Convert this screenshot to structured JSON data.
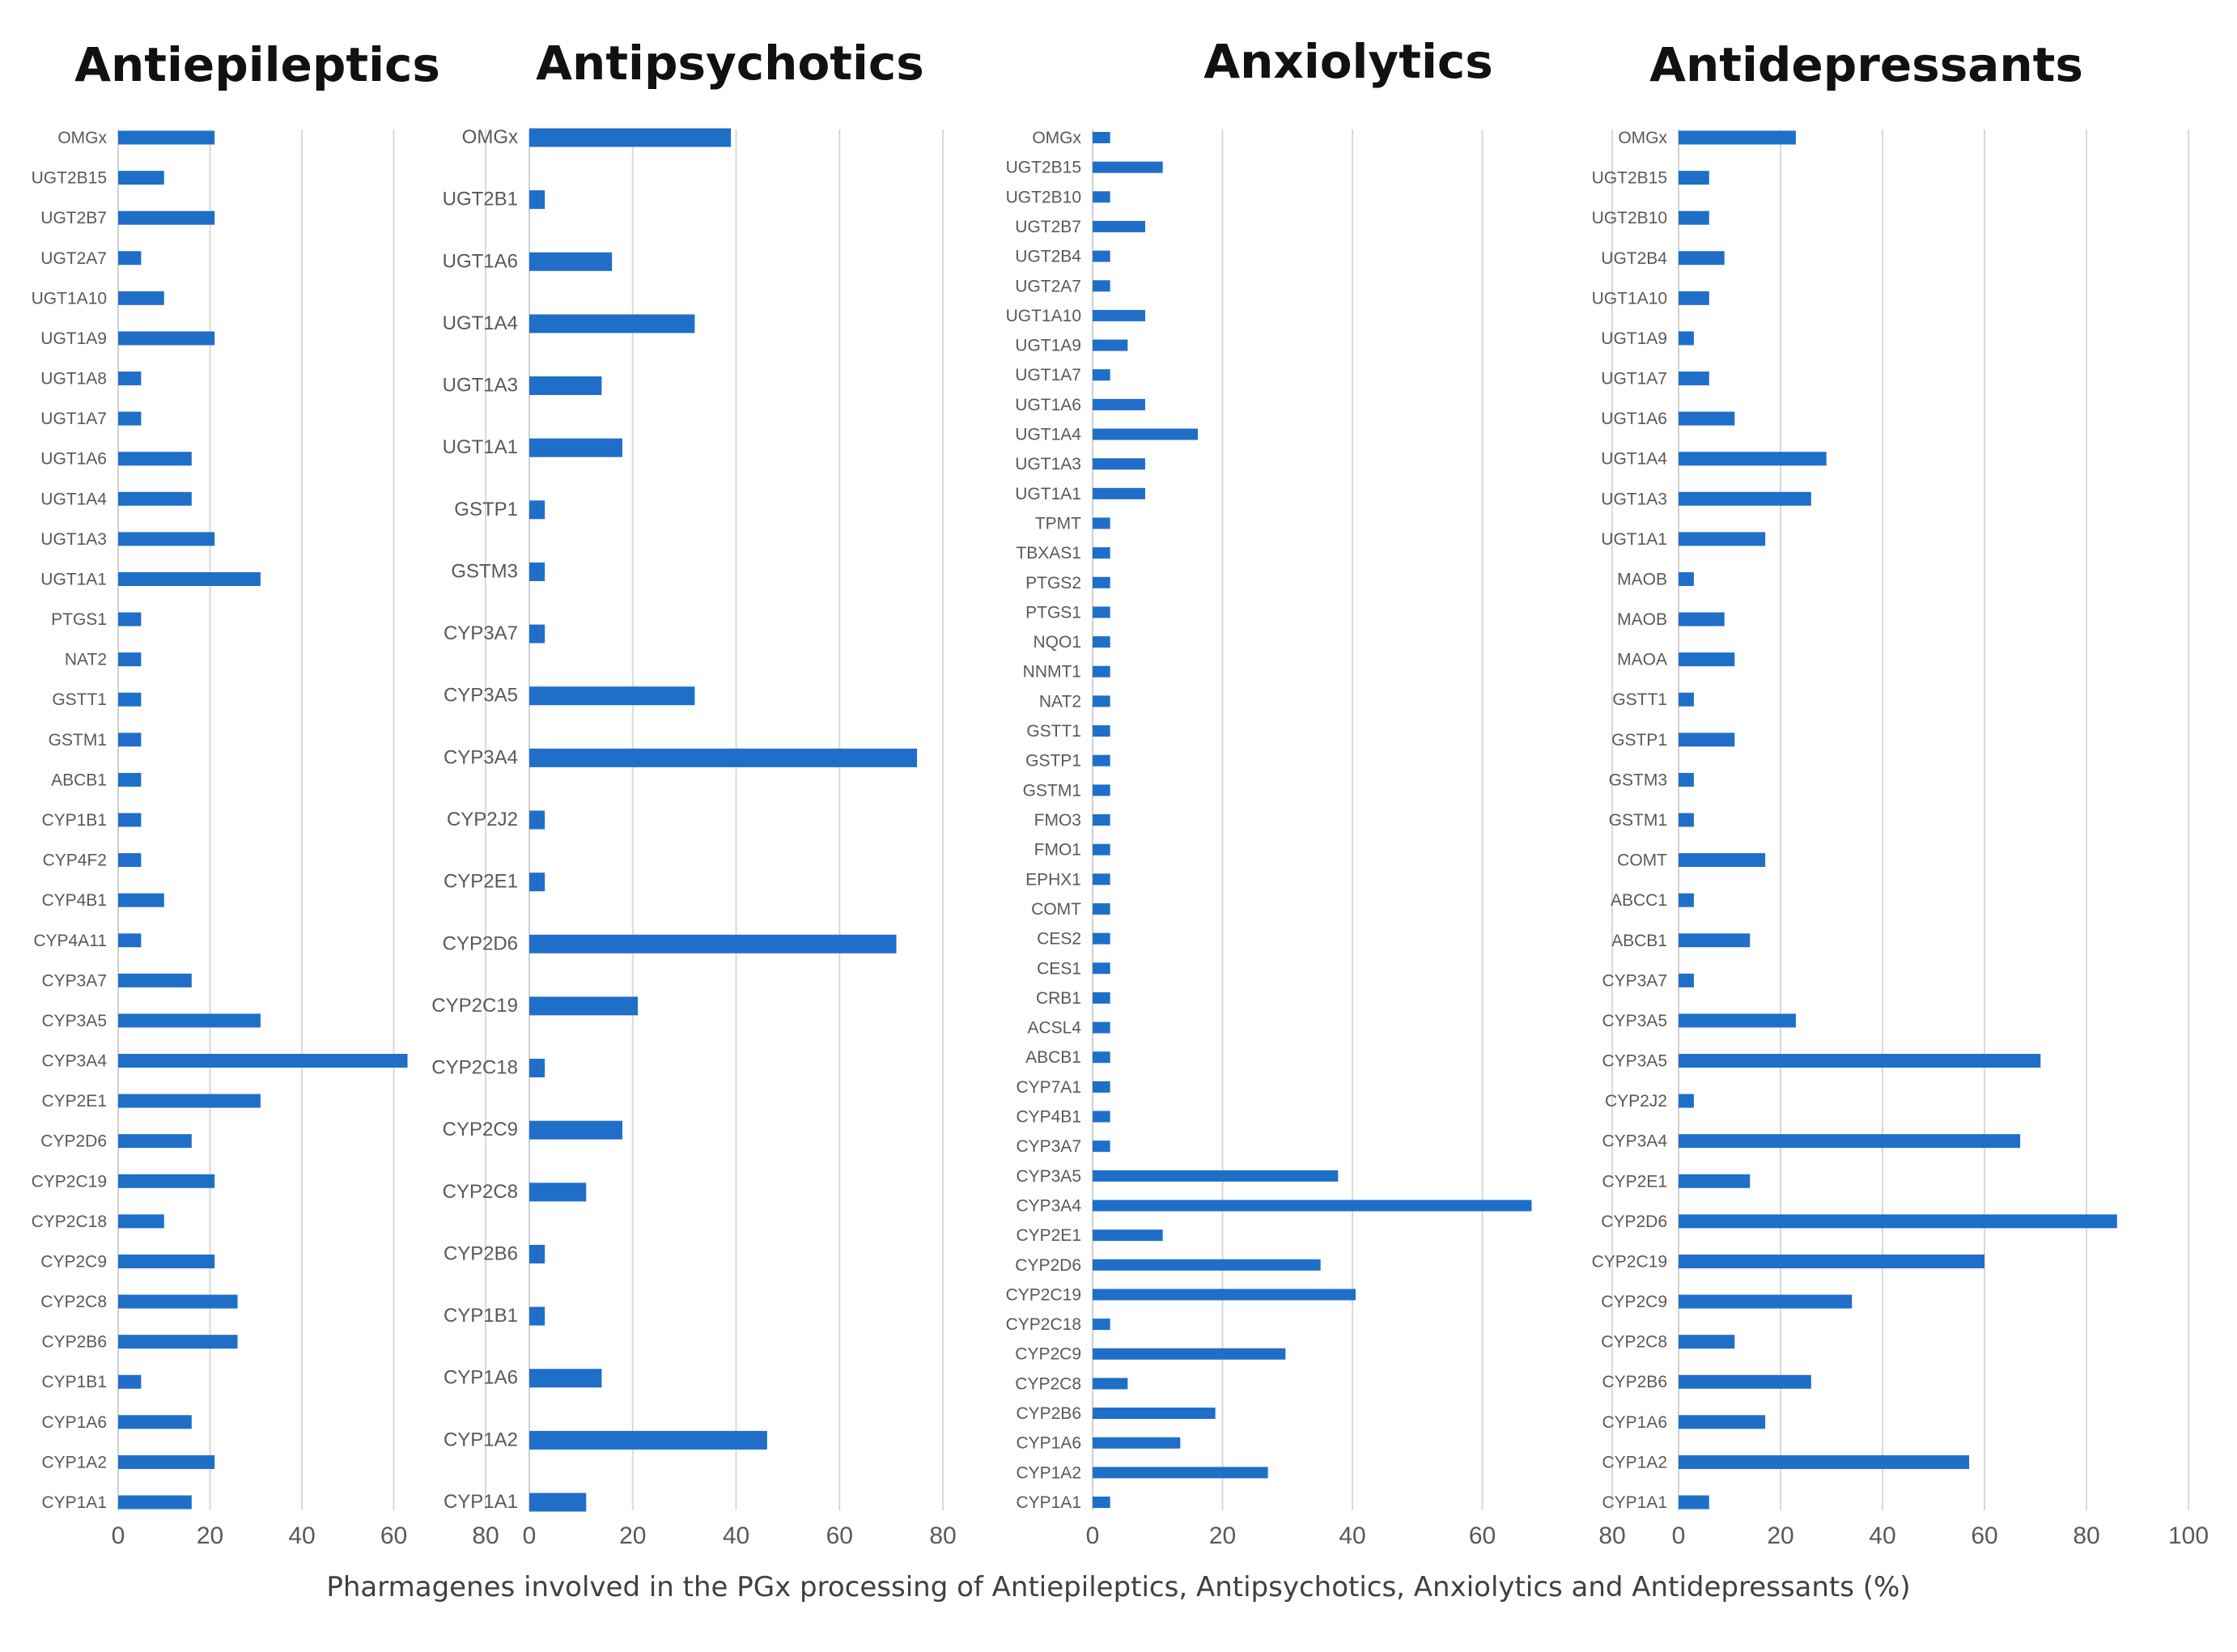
{
  "chart_data": [
    {
      "type": "bar",
      "orientation": "horizontal",
      "title": "Antiepileptics",
      "xlim": [
        0,
        80
      ],
      "xticks": [
        0,
        20,
        40,
        60,
        80
      ],
      "categories": [
        "OMGx",
        "UGT2B15",
        "UGT2B7",
        "UGT2A7",
        "UGT1A10",
        "UGT1A9",
        "UGT1A8",
        "UGT1A7",
        "UGT1A6",
        "UGT1A4",
        "UGT1A3",
        "UGT1A1",
        "PTGS1",
        "NAT2",
        "GSTT1",
        "GSTM1",
        "ABCB1",
        "CYP1B1",
        "CYP4F2",
        "CYP4B1",
        "CYP4A11",
        "CYP3A7",
        "CYP3A5",
        "CYP3A4",
        "CYP2E1",
        "CYP2D6",
        "CYP2C19",
        "CYP2C18",
        "CYP2C9",
        "CYP2C8",
        "CYP2B6",
        "CYP1B1",
        "CYP1A6",
        "CYP1A2",
        "CYP1A1"
      ],
      "values": [
        21,
        10,
        21,
        5,
        10,
        21,
        5,
        5,
        16,
        16,
        21,
        31,
        5,
        5,
        5,
        5,
        5,
        5,
        5,
        10,
        5,
        16,
        31,
        63,
        31,
        16,
        21,
        10,
        21,
        26,
        26,
        5,
        16,
        21,
        16
      ]
    },
    {
      "type": "bar",
      "orientation": "horizontal",
      "title": "Antipsychotics",
      "xlim": [
        0,
        80
      ],
      "xticks": [
        0,
        20,
        40,
        60,
        80
      ],
      "categories": [
        "OMGx",
        "UGT2B1",
        "UGT1A6",
        "UGT1A4",
        "UGT1A3",
        "UGT1A1",
        "GSTP1",
        "GSTM3",
        "CYP3A7",
        "CYP3A5",
        "CYP3A4",
        "CYP2J2",
        "CYP2E1",
        "CYP2D6",
        "CYP2C19",
        "CYP2C18",
        "CYP2C9",
        "CYP2C8",
        "CYP2B6",
        "CYP1B1",
        "CYP1A6",
        "CYP1A2",
        "CYP1A1"
      ],
      "values": [
        39,
        3,
        16,
        32,
        14,
        18,
        3,
        3,
        3,
        32,
        75,
        3,
        3,
        71,
        21,
        3,
        18,
        11,
        3,
        3,
        14,
        46,
        11
      ]
    },
    {
      "type": "bar",
      "orientation": "horizontal",
      "title": "Anxiolytics",
      "xlim": [
        0,
        80
      ],
      "xticks": [
        0,
        20,
        40,
        60,
        80
      ],
      "categories": [
        "OMGx",
        "UGT2B15",
        "UGT2B10",
        "UGT2B7",
        "UGT2B4",
        "UGT2A7",
        "UGT1A10",
        "UGT1A9",
        "UGT1A7",
        "UGT1A6",
        "UGT1A4",
        "UGT1A3",
        "UGT1A1",
        "TPMT",
        "TBXAS1",
        "PTGS2",
        "PTGS1",
        "NQO1",
        "NNMT1",
        "NAT2",
        "GSTT1",
        "GSTP1",
        "GSTM1",
        "FMO3",
        "FMO1",
        "EPHX1",
        "COMT",
        "CES2",
        "CES1",
        "CRB1",
        "ACSL4",
        "ABCB1",
        "CYP7A1",
        "CYP4B1",
        "CYP3A7",
        "CYP3A5",
        "CYP3A4",
        "CYP2E1",
        "CYP2D6",
        "CYP2C19",
        "CYP2C18",
        "CYP2C9",
        "CYP2C8",
        "CYP2B6",
        "CYP1A6",
        "CYP1A2",
        "CYP1A1"
      ],
      "values": [
        2.7,
        10.8,
        2.7,
        8.1,
        2.7,
        2.7,
        8.1,
        5.4,
        2.7,
        8.1,
        16.2,
        8.1,
        8.1,
        2.7,
        2.7,
        2.7,
        2.7,
        2.7,
        2.7,
        2.7,
        2.7,
        2.7,
        2.7,
        2.7,
        2.7,
        2.7,
        2.7,
        2.7,
        2.7,
        2.7,
        2.7,
        2.7,
        2.7,
        2.7,
        2.7,
        37.8,
        67.6,
        10.8,
        35.1,
        40.5,
        2.7,
        29.7,
        5.4,
        18.9,
        13.5,
        27.0,
        2.7
      ]
    },
    {
      "type": "bar",
      "orientation": "horizontal",
      "title": "Antidepressants",
      "xlim": [
        0,
        100
      ],
      "xticks": [
        0,
        20,
        40,
        60,
        80,
        100
      ],
      "categories": [
        "OMGx",
        "UGT2B15",
        "UGT2B10",
        "UGT2B4",
        "UGT1A10",
        "UGT1A9",
        "UGT1A7",
        "UGT1A6",
        "UGT1A4",
        "UGT1A3",
        "UGT1A1",
        "MAOB",
        "MAOB",
        "MAOA",
        "GSTT1",
        "GSTP1",
        "GSTM3",
        "GSTM1",
        "COMT",
        "ABCC1",
        "ABCB1",
        "CYP3A7",
        "CYP3A5",
        "CYP3A5",
        "CYP2J2",
        "CYP3A4",
        "CYP2E1",
        "CYP2D6",
        "CYP2C19",
        "CYP2C9",
        "CYP2C8",
        "CYP2B6",
        "CYP1A6",
        "CYP1A2",
        "CYP1A1"
      ],
      "values": [
        23,
        6,
        6,
        9,
        6,
        3,
        6,
        11,
        29,
        26,
        17,
        3,
        9,
        11,
        3,
        11,
        3,
        3,
        17,
        3,
        14,
        3,
        23,
        71,
        3,
        67,
        14,
        86,
        60,
        34,
        11,
        26,
        17,
        57,
        6
      ]
    }
  ],
  "xlabel": "Pharmagenes involved in the PGx processing of Antiepileptics, Antipsychotics, Anxiolytics and Antidepressants (%)",
  "colors": {
    "bar": "#1f6fc8",
    "grid": "#d9d9d9"
  }
}
